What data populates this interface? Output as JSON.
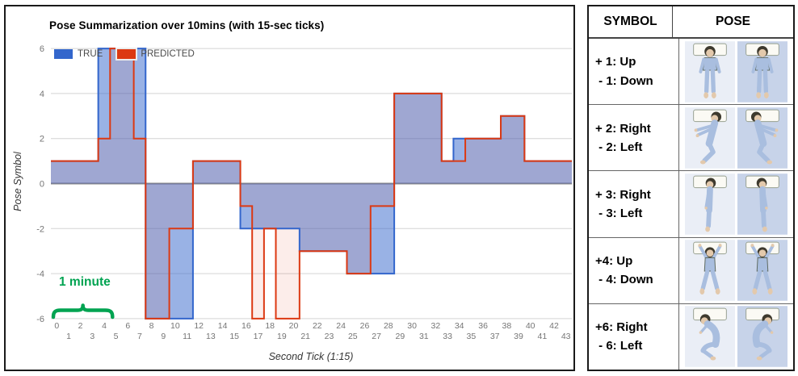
{
  "chart_data": {
    "type": "stepped-area",
    "title": "Pose Summarization over 10mins (with 15-sec ticks)",
    "xlabel": "Second Tick (1:15)",
    "ylabel": "Pose Symbol",
    "ylim": [
      -6,
      6
    ],
    "grid": true,
    "legend_position": "top-left-inside",
    "x_categories": [
      0,
      1,
      2,
      3,
      4,
      5,
      6,
      7,
      8,
      9,
      10,
      11,
      12,
      13,
      14,
      15,
      16,
      17,
      18,
      19,
      20,
      21,
      22,
      23,
      24,
      25,
      26,
      27,
      28,
      29,
      30,
      31,
      32,
      33,
      34,
      35,
      36,
      37,
      38,
      39,
      40,
      41,
      42,
      43
    ],
    "y_ticks": [
      6,
      4,
      2,
      0,
      -2,
      -4,
      -6
    ],
    "series": [
      {
        "name": "TRUE",
        "color": "#3366CC",
        "fill_opacity": 0.5,
        "values": [
          1,
          1,
          1,
          1,
          6,
          6,
          6,
          6,
          -6,
          -6,
          -6,
          -6,
          1,
          1,
          1,
          1,
          -2,
          -2,
          -2,
          -2,
          -2,
          -3,
          -3,
          -3,
          -3,
          -4,
          -4,
          -4,
          -4,
          4,
          4,
          4,
          4,
          1,
          2,
          2,
          2,
          2,
          3,
          3,
          1,
          1,
          1,
          1
        ]
      },
      {
        "name": "PREDICTED",
        "color": "#DC3912",
        "fill_opacity": 0.09,
        "values": [
          1,
          1,
          1,
          1,
          2,
          6,
          6,
          2,
          -6,
          -6,
          -2,
          -2,
          1,
          1,
          1,
          1,
          -1,
          -6,
          -2,
          -6,
          -6,
          -3,
          -3,
          -3,
          -3,
          -4,
          -4,
          -1,
          -1,
          4,
          4,
          4,
          4,
          1,
          1,
          2,
          2,
          2,
          3,
          3,
          1,
          1,
          1,
          1
        ]
      }
    ],
    "annotation": {
      "text": "1 minute",
      "color": "#00a351",
      "span_category_boundaries": [
        0,
        5
      ]
    }
  },
  "table": {
    "headers": [
      "SYMBOL",
      "POSE"
    ],
    "rows": [
      {
        "symbol": "+ 1: Up\n - 1: Down",
        "pose_icon": "lying-on-back-icon"
      },
      {
        "symbol": "+ 2: Right\n - 2: Left",
        "pose_icon": "side-arms-extended-icon"
      },
      {
        "symbol": "+ 3: Right\n - 3: Left",
        "pose_icon": "side-straight-icon"
      },
      {
        "symbol": "+4: Up\n - 4: Down",
        "pose_icon": "back-arms-raised-icon"
      },
      {
        "symbol": "+6: Right\n - 6: Left",
        "pose_icon": "fetal-curled-icon"
      }
    ]
  }
}
